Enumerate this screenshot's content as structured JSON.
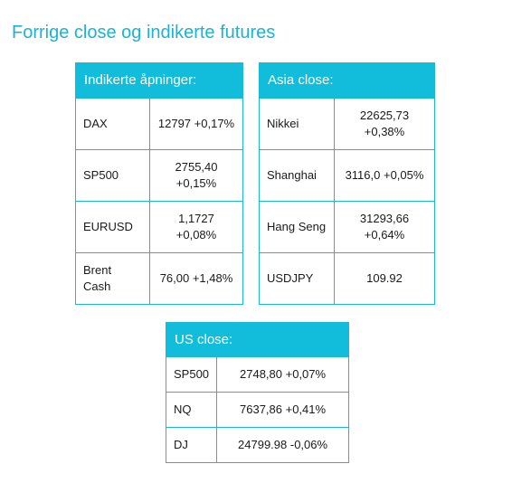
{
  "title": "Forrige close og indikerte futures",
  "tables": {
    "indikerte": {
      "header": "Indikerte åpninger:",
      "rows": [
        {
          "label": "DAX",
          "value": "12797 +0,17%"
        },
        {
          "label": "SP500",
          "value": "2755,40 +0,15%"
        },
        {
          "label": "EURUSD",
          "value": "1,1727 +0,08%"
        },
        {
          "label": "Brent Cash",
          "value": "76,00 +1,48%"
        }
      ]
    },
    "asia": {
      "header": "Asia close:",
      "rows": [
        {
          "label": "Nikkei",
          "value": "22625,73 +0,38%"
        },
        {
          "label": "Shanghai",
          "value": "3116,0 +0,05%"
        },
        {
          "label": "Hang Seng",
          "value": "31293,66 +0,64%"
        },
        {
          "label": "USDJPY",
          "value": "109.92"
        }
      ]
    },
    "us": {
      "header": "US close:",
      "rows": [
        {
          "label": "SP500",
          "value": "2748,80 +0,07%"
        },
        {
          "label": "NQ",
          "value": "7637,86 +0,41%"
        },
        {
          "label": "DJ",
          "value": "24799.98 -0,06%"
        }
      ]
    }
  },
  "colors": {
    "accent": "#12bddb",
    "title": "#1bb3d4"
  }
}
